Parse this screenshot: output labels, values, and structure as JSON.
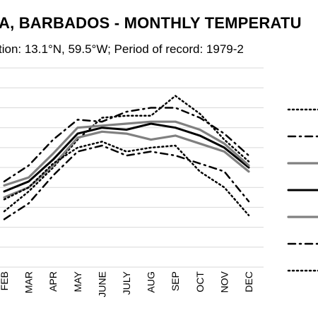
{
  "title": "A, BARBADOS - MONTHLY TEMPERATU",
  "subtitle": "tion: 13.1°N, 59.5°W; Period of record: 1979-2",
  "chart_data": {
    "type": "line",
    "title": "A, BARBADOS - MONTHLY TEMPERATU",
    "subtitle": "tion: 13.1°N, 59.5°W; Period of record: 1979-2",
    "categories": [
      "FEB",
      "MAR",
      "APR",
      "MAY",
      "JUNE",
      "JULY",
      "AUG",
      "SEP",
      "OCT",
      "NOV",
      "DEC"
    ],
    "ylim": [
      0,
      10.5
    ],
    "grid": true,
    "legend_position": "right",
    "series": [
      {
        "style": "dotted",
        "color": "#000000",
        "values": [
          2.8,
          3.8,
          5.0,
          6.4,
          7.5,
          7.6,
          7.6,
          8.6,
          7.7,
          6.4,
          5.3
        ]
      },
      {
        "style": "dash-dot",
        "color": "#000000",
        "values": [
          2.4,
          3.2,
          4.6,
          5.8,
          6.1,
          5.6,
          5.8,
          5.6,
          5.2,
          4.8,
          3.3
        ]
      },
      {
        "style": "solid",
        "color": "#808080",
        "values": [
          3.5,
          4.0,
          5.1,
          6.5,
          6.8,
          6.7,
          6.4,
          6.6,
          6.2,
          5.8,
          4.8
        ]
      },
      {
        "style": "solid",
        "color": "#000000",
        "values": [
          3.8,
          4.3,
          5.4,
          6.7,
          7.0,
          6.9,
          7.2,
          7.0,
          6.6,
          6.0,
          5.0
        ]
      },
      {
        "style": "solid",
        "color": "#808080",
        "values": [
          4.1,
          4.5,
          5.7,
          7.0,
          7.1,
          7.2,
          7.3,
          7.3,
          6.9,
          6.2,
          5.1
        ]
      },
      {
        "style": "dash-dot",
        "color": "#000000",
        "values": [
          4.3,
          5.1,
          6.4,
          7.4,
          7.3,
          7.8,
          8.0,
          8.0,
          7.5,
          6.7,
          5.6
        ]
      },
      {
        "style": "dotted",
        "color": "#000000",
        "values": [
          3.4,
          4.0,
          5.2,
          6.0,
          6.3,
          5.8,
          6.0,
          6.1,
          4.8,
          4.0,
          2.6
        ]
      }
    ]
  }
}
